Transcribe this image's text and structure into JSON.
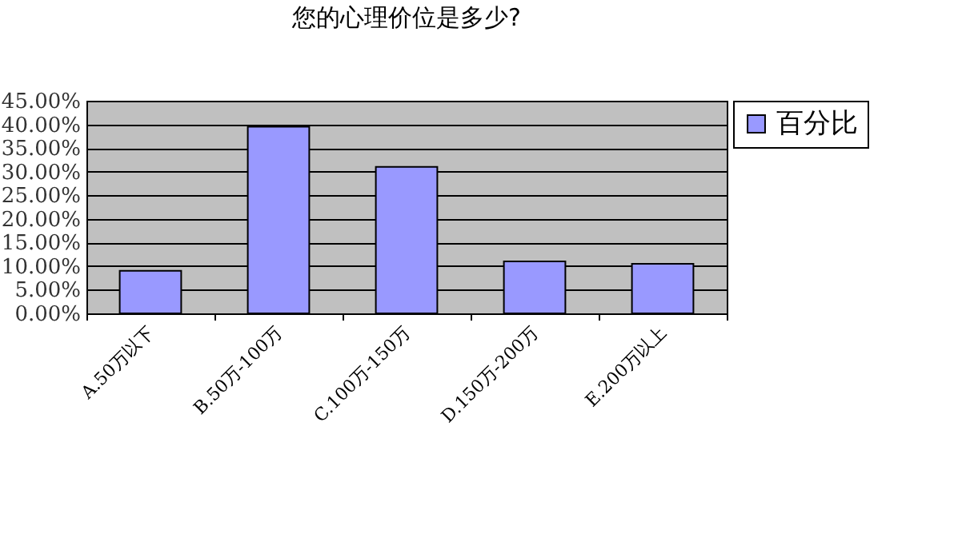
{
  "chart_data": {
    "type": "bar",
    "title": "您的心理价位是多少?",
    "categories": [
      "A.50万以下",
      "B.50万-100万",
      "C.100万-150万",
      "D.150万-200万",
      "E.200万以上"
    ],
    "series": [
      {
        "name": "百分比",
        "color": "#9999ff",
        "values": [
          9,
          39.5,
          31,
          11,
          10.5
        ]
      }
    ],
    "ylim": [
      0,
      45
    ],
    "yticks": [
      {
        "value": 0,
        "label": "0.00%"
      },
      {
        "value": 5,
        "label": "5.00%"
      },
      {
        "value": 10,
        "label": "10.00%"
      },
      {
        "value": 15,
        "label": "15.00%"
      },
      {
        "value": 20,
        "label": "20.00%"
      },
      {
        "value": 25,
        "label": "25.00%"
      },
      {
        "value": 30,
        "label": "30.00%"
      },
      {
        "value": 35,
        "label": "35.00%"
      },
      {
        "value": 40,
        "label": "40.00%"
      },
      {
        "value": 45,
        "label": "45.00%"
      }
    ],
    "grid": "y",
    "legend": "right"
  }
}
